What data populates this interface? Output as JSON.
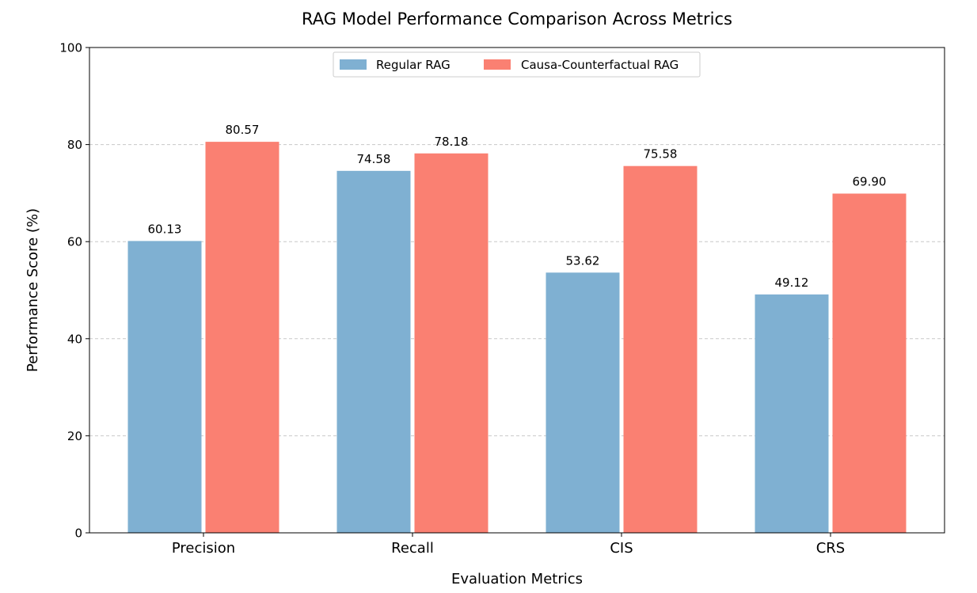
{
  "chart_data": {
    "type": "bar",
    "title": "RAG Model Performance Comparison Across Metrics",
    "xlabel": "Evaluation Metrics",
    "ylabel": "Performance Score (%)",
    "ylim": [
      0,
      100
    ],
    "yticks": [
      0,
      20,
      40,
      60,
      80,
      100
    ],
    "grid": true,
    "legend_position": "upper-center",
    "categories": [
      "Precision",
      "Recall",
      "CIS",
      "CRS"
    ],
    "series": [
      {
        "name": "Regular RAG",
        "color": "#7fb0d2",
        "values": [
          60.13,
          74.58,
          53.62,
          49.12
        ],
        "labels": [
          "60.13",
          "74.58",
          "53.62",
          "49.12"
        ]
      },
      {
        "name": "Causa-Counterfactual RAG",
        "color": "#fa8072",
        "values": [
          80.57,
          78.18,
          75.58,
          69.9
        ],
        "labels": [
          "80.57",
          "78.18",
          "75.58",
          "69.90"
        ]
      }
    ]
  }
}
